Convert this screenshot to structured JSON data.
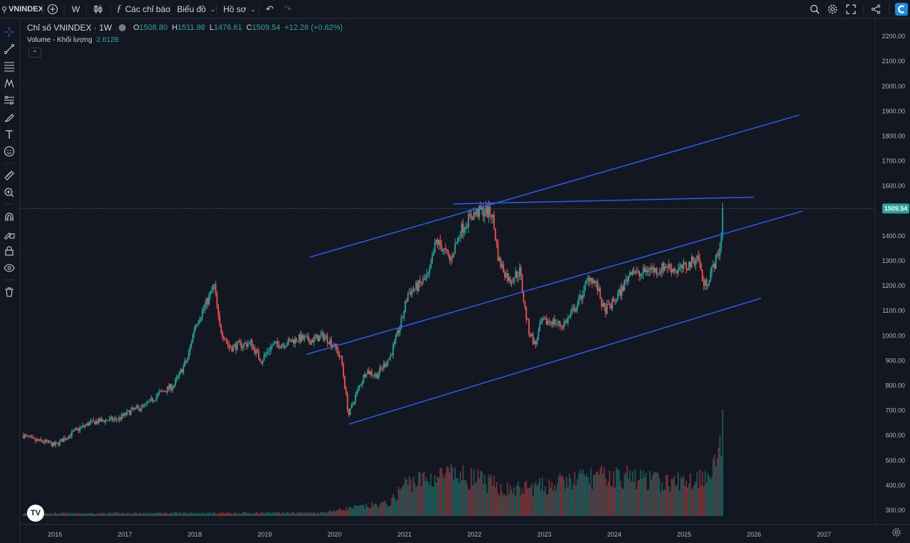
{
  "toolbar": {
    "symbol": "VNINDEX",
    "interval": "W",
    "indicators_label": "Các chỉ báo",
    "chart_type_label": "Biểu đồ",
    "profile_label": "Hồ sơ"
  },
  "legend": {
    "title": "Chỉ số VNINDEX · 1W",
    "o_label": "O",
    "o_value": "1508.80",
    "h_label": "H",
    "h_value": "1511.98",
    "l_label": "L",
    "l_value": "1476.61",
    "c_label": "C",
    "c_value": "1509.54",
    "change": "+12.26 (+0.82%)",
    "volume_label": "Volume - Khối lượng",
    "volume_value": "2.612B"
  },
  "colors": {
    "up": "#26a69a",
    "down": "#ef5350",
    "trendline": "#2962ff",
    "background": "#131722",
    "price_tag": "#26a69a"
  },
  "icons": {
    "left_toolbar": [
      "crosshair-icon",
      "trendline-icon",
      "fib-icon",
      "pattern-icon",
      "projection-icon",
      "brush-icon",
      "text-icon",
      "emoji-icon",
      "ruler-icon",
      "zoom-in-icon",
      "magnet-icon",
      "lock-drawing-icon",
      "lock-icon",
      "eye-icon",
      "trash-icon"
    ],
    "top_right": [
      "search-zoom-icon",
      "settings-icon",
      "fullscreen-icon",
      "share-icon",
      "logo-icon"
    ]
  },
  "chart_data": {
    "type": "candlestick",
    "title": "Chỉ số VNINDEX · 1W",
    "y_axis": {
      "ticks": [
        300,
        400,
        500,
        600,
        700,
        800,
        900,
        1000,
        1100,
        1200,
        1300,
        1400,
        1500,
        1600,
        1700,
        1800,
        1900,
        2000,
        2100,
        2200
      ],
      "tick_labels": [
        "300.00",
        "400.00",
        "500.00",
        "600.00",
        "700.00",
        "800.00",
        "900.00",
        "1000.00",
        "1100.00",
        "1200.00",
        "1300.00",
        "1400.00",
        "1500.00",
        "1600.00",
        "1700.00",
        "1800.00",
        "1900.00",
        "2000.00",
        "2100.00",
        "2200.00"
      ],
      "range": [
        260,
        2260
      ],
      "current_price_label": "1509.54"
    },
    "x_axis": {
      "tick_labels": [
        "2016",
        "2017",
        "2018",
        "2019",
        "2020",
        "2021",
        "2022",
        "2023",
        "2024",
        "2025",
        "2026",
        "2027"
      ],
      "range": [
        2015.55,
        2027.6
      ]
    },
    "price_path": [
      [
        2015.55,
        600
      ],
      [
        2015.7,
        580
      ],
      [
        2015.85,
        575
      ],
      [
        2016.0,
        560
      ],
      [
        2016.1,
        580
      ],
      [
        2016.3,
        620
      ],
      [
        2016.5,
        650
      ],
      [
        2016.7,
        660
      ],
      [
        2016.9,
        665
      ],
      [
        2017.1,
        700
      ],
      [
        2017.3,
        720
      ],
      [
        2017.5,
        770
      ],
      [
        2017.7,
        800
      ],
      [
        2017.9,
        910
      ],
      [
        2018.0,
        1040
      ],
      [
        2018.15,
        1120
      ],
      [
        2018.28,
        1200
      ],
      [
        2018.35,
        1040
      ],
      [
        2018.5,
        950
      ],
      [
        2018.6,
        960
      ],
      [
        2018.8,
        970
      ],
      [
        2018.95,
        900
      ],
      [
        2019.1,
        960
      ],
      [
        2019.3,
        970
      ],
      [
        2019.5,
        990
      ],
      [
        2019.65,
        980
      ],
      [
        2019.85,
        1000
      ],
      [
        2020.0,
        960
      ],
      [
        2020.1,
        900
      ],
      [
        2020.2,
        680
      ],
      [
        2020.3,
        760
      ],
      [
        2020.45,
        860
      ],
      [
        2020.6,
        840
      ],
      [
        2020.8,
        920
      ],
      [
        2020.95,
        1050
      ],
      [
        2021.05,
        1170
      ],
      [
        2021.2,
        1200
      ],
      [
        2021.35,
        1240
      ],
      [
        2021.45,
        1380
      ],
      [
        2021.55,
        1350
      ],
      [
        2021.65,
        1300
      ],
      [
        2021.8,
        1420
      ],
      [
        2021.95,
        1480
      ],
      [
        2022.1,
        1500
      ],
      [
        2022.25,
        1490
      ],
      [
        2022.35,
        1300
      ],
      [
        2022.5,
        1220
      ],
      [
        2022.65,
        1260
      ],
      [
        2022.72,
        1110
      ],
      [
        2022.78,
        1020
      ],
      [
        2022.87,
        960
      ],
      [
        2022.95,
        1050
      ],
      [
        2023.1,
        1060
      ],
      [
        2023.25,
        1040
      ],
      [
        2023.35,
        1070
      ],
      [
        2023.5,
        1140
      ],
      [
        2023.65,
        1240
      ],
      [
        2023.75,
        1200
      ],
      [
        2023.85,
        1100
      ],
      [
        2023.95,
        1120
      ],
      [
        2024.1,
        1180
      ],
      [
        2024.25,
        1270
      ],
      [
        2024.35,
        1240
      ],
      [
        2024.5,
        1270
      ],
      [
        2024.6,
        1260
      ],
      [
        2024.75,
        1280
      ],
      [
        2024.9,
        1260
      ],
      [
        2025.05,
        1280
      ],
      [
        2025.2,
        1320
      ],
      [
        2025.28,
        1200
      ],
      [
        2025.35,
        1230
      ],
      [
        2025.45,
        1300
      ],
      [
        2025.52,
        1360
      ],
      [
        2025.55,
        1500
      ]
    ],
    "volume": {
      "last_bar_value_label": "2.612B",
      "profile": [
        [
          2015.55,
          0.03
        ],
        [
          2019.8,
          0.04
        ],
        [
          2020.3,
          0.1
        ],
        [
          2020.8,
          0.15
        ],
        [
          2021.0,
          0.38
        ],
        [
          2021.6,
          0.48
        ],
        [
          2022.0,
          0.44
        ],
        [
          2022.5,
          0.3
        ],
        [
          2023.0,
          0.35
        ],
        [
          2023.6,
          0.45
        ],
        [
          2024.2,
          0.46
        ],
        [
          2024.8,
          0.38
        ],
        [
          2025.2,
          0.44
        ],
        [
          2025.45,
          0.6
        ],
        [
          2025.55,
          1.0
        ]
      ]
    },
    "trendlines": [
      {
        "from": [
          2019.65,
          1315
        ],
        "to": [
          2026.65,
          1885
        ]
      },
      {
        "from": [
          2021.7,
          1528
        ],
        "to": [
          2026.0,
          1555
        ]
      },
      {
        "from": [
          2019.6,
          925
        ],
        "to": [
          2026.7,
          1500
        ]
      },
      {
        "from": [
          2020.2,
          645
        ],
        "to": [
          2026.1,
          1150
        ]
      }
    ],
    "last_price": 1509.54,
    "grid": false
  }
}
